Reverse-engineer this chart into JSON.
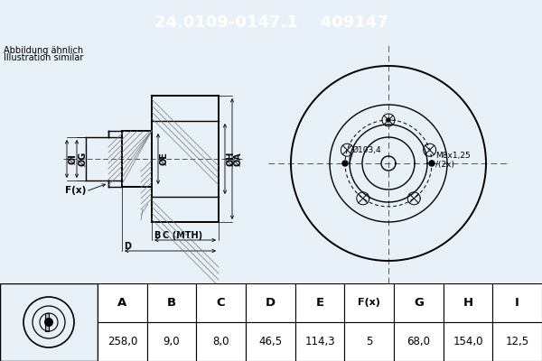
{
  "title_part": "24.0109-0147.1",
  "title_id": "409147",
  "header_bg": "#1a6fd4",
  "header_text_color": "#ffffff",
  "bg_color": "#e8f0f8",
  "note_line1": "Abbildung ähnlich",
  "note_line2": "Illustration similar",
  "dim_label_A": "ØA",
  "dim_label_H": "ØH",
  "dim_label_E": "ØE",
  "dim_label_G": "ØG",
  "dim_label_I": "ØI",
  "dim_label_F": "F(x)",
  "dim_label_B": "B",
  "dim_label_C": "C (MTH)",
  "dim_label_D": "D",
  "annot_bore": "Ø103,4",
  "annot_thread": "M8x1,25",
  "annot_thread2": "/(2x)",
  "table_headers": [
    "A",
    "B",
    "C",
    "D",
    "E",
    "F(x)",
    "G",
    "H",
    "I"
  ],
  "table_values": [
    "258,0",
    "9,0",
    "8,0",
    "46,5",
    "114,3",
    "5",
    "68,0",
    "154,0",
    "12,5"
  ],
  "lc": "#000000",
  "font_size_header": 13,
  "n_bolts": 5
}
